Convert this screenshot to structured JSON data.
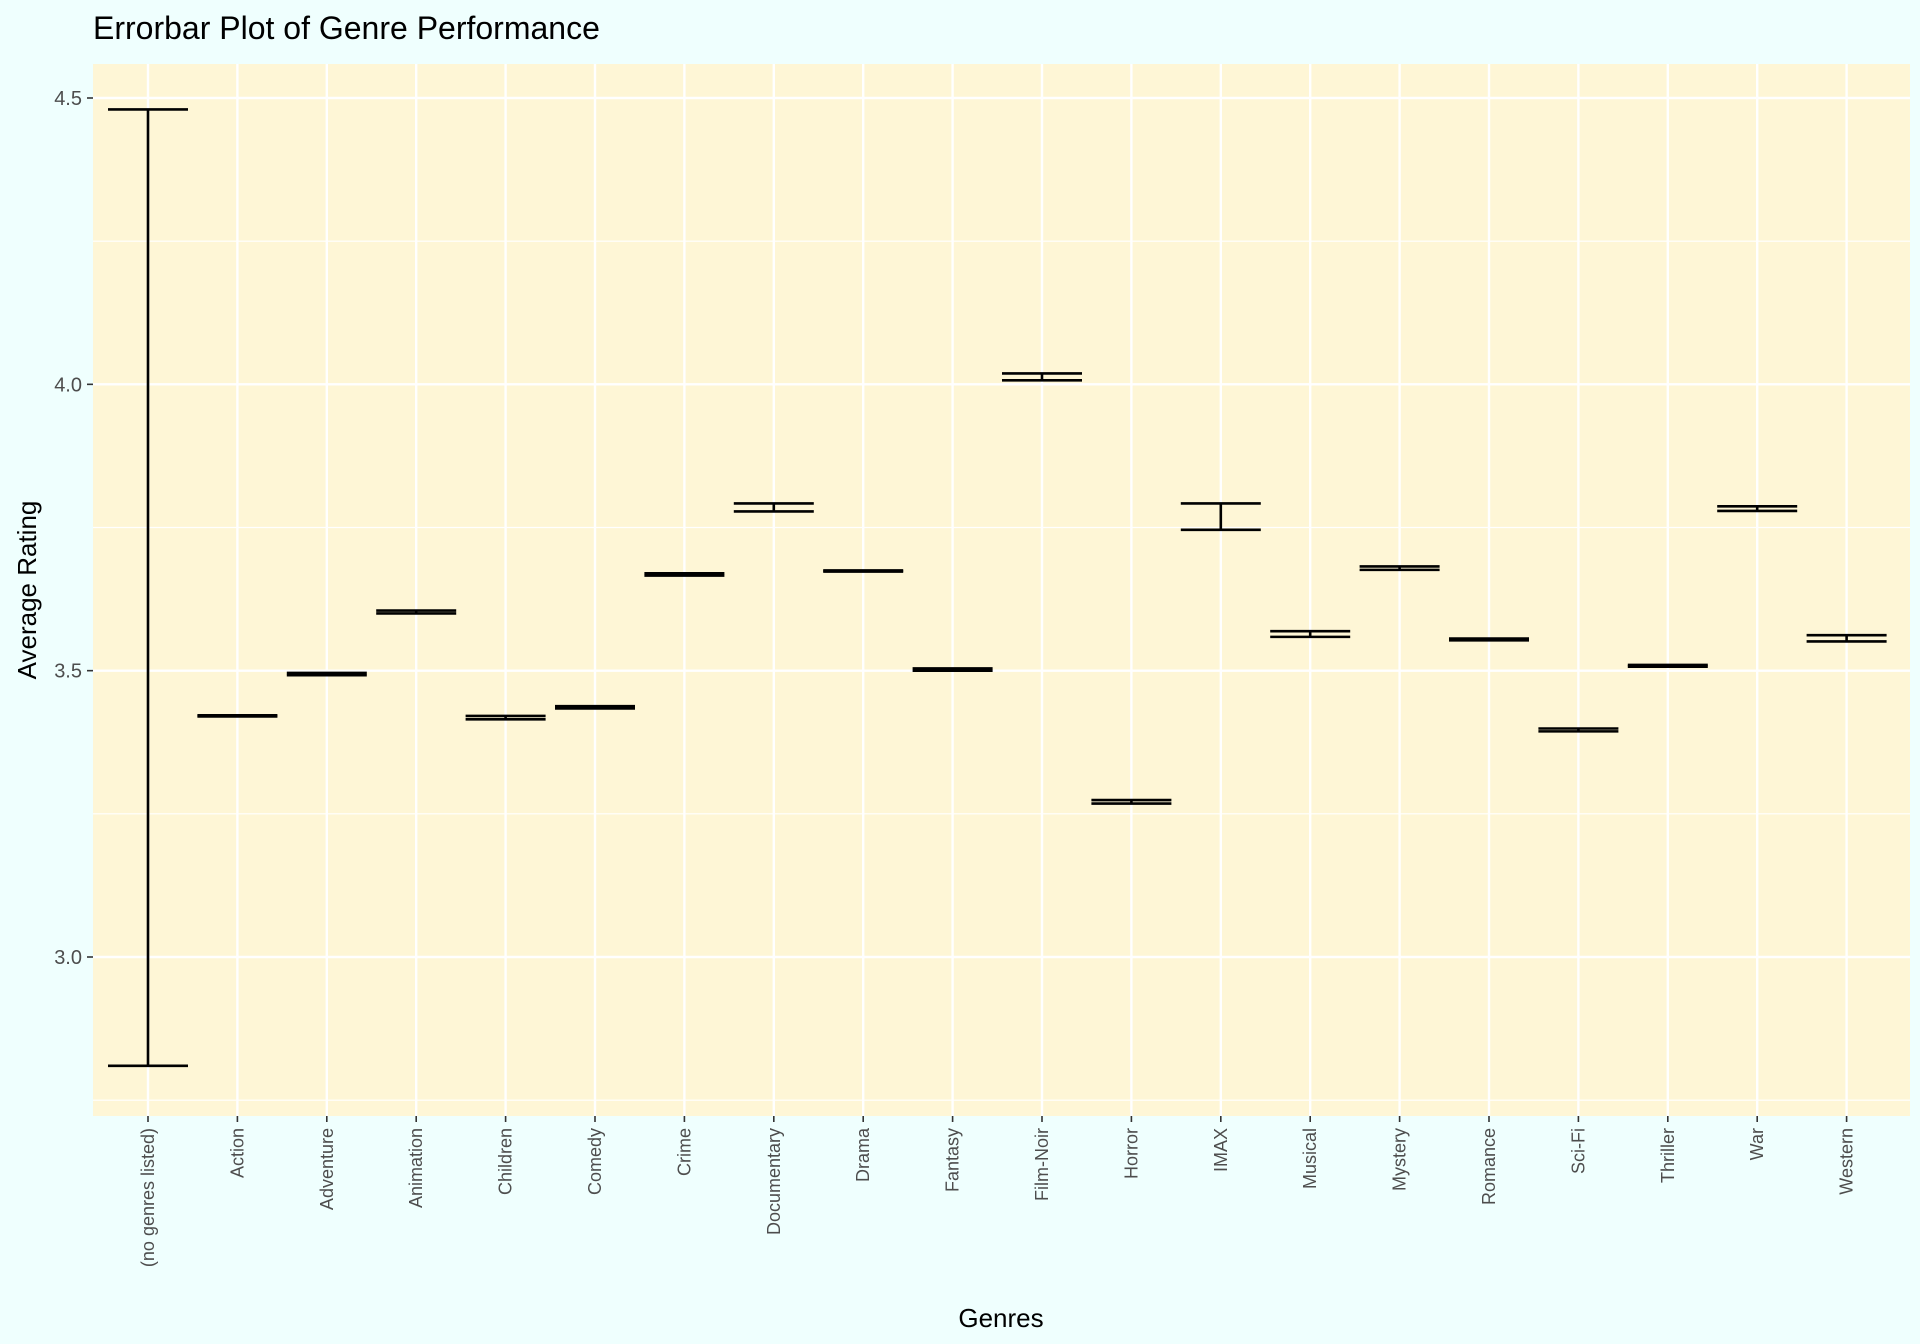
{
  "chart_data": {
    "type": "errorbar",
    "title": "Errorbar Plot of Genre Performance",
    "xlabel": "Genres",
    "ylabel": "Average Rating",
    "ylim": [
      2.73,
      4.58
    ],
    "yticks": [
      3.0,
      3.5,
      4.0,
      4.5
    ],
    "ytick_labels": [
      "3.0",
      "3.5",
      "4.0",
      "4.5"
    ],
    "grid": true,
    "categories": [
      "(no genres listed)",
      "Action",
      "Adventure",
      "Animation",
      "Children",
      "Comedy",
      "Crime",
      "Documentary",
      "Drama",
      "Fantasy",
      "Film-Noir",
      "Horror",
      "IMAX",
      "Musical",
      "Mystery",
      "Romance",
      "Sci-Fi",
      "Thriller",
      "War",
      "Western"
    ],
    "lower": [
      2.81,
      3.42,
      3.492,
      3.6,
      3.415,
      3.434,
      3.666,
      3.778,
      3.673,
      3.5,
      4.007,
      3.268,
      3.746,
      3.559,
      3.676,
      3.553,
      3.394,
      3.507,
      3.779,
      3.551
    ],
    "upper": [
      4.48,
      3.422,
      3.496,
      3.605,
      3.421,
      3.438,
      3.67,
      3.792,
      3.675,
      3.504,
      4.019,
      3.274,
      3.792,
      3.569,
      3.682,
      3.556,
      3.399,
      3.51,
      3.787,
      3.562
    ]
  },
  "colors": {
    "page_background": "#effffe",
    "panel_background": "#fef6d6",
    "grid_line": "#ffffff",
    "errorbar": "#000000",
    "tick_text": "#4d4d4d"
  }
}
